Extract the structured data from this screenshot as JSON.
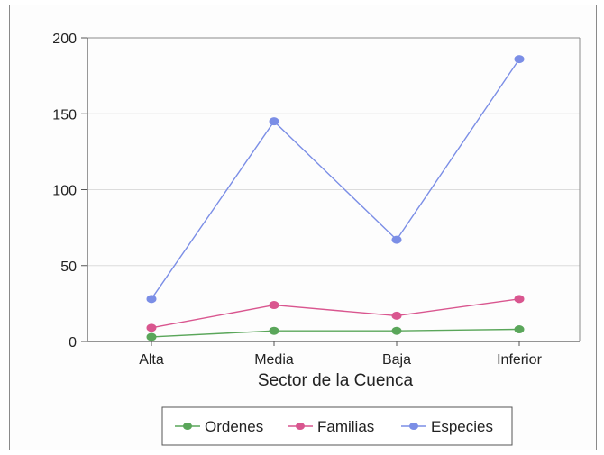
{
  "chart_data": {
    "type": "line",
    "title": "",
    "xlabel": "Sector de la Cuenca",
    "ylabel": "",
    "categories": [
      "Alta",
      "Media",
      "Baja",
      "Inferior"
    ],
    "ylim": [
      0,
      200
    ],
    "yticks": [
      0,
      50,
      100,
      150,
      200
    ],
    "grid": true,
    "legend_position": "bottom",
    "series": [
      {
        "name": "Ordenes",
        "color": "#5aa65a",
        "values": [
          3,
          7,
          7,
          8
        ]
      },
      {
        "name": "Familias",
        "color": "#d9568f",
        "values": [
          9,
          24,
          17,
          28
        ]
      },
      {
        "name": "Especies",
        "color": "#7b8ee6",
        "values": [
          28,
          145,
          67,
          186
        ]
      }
    ]
  }
}
